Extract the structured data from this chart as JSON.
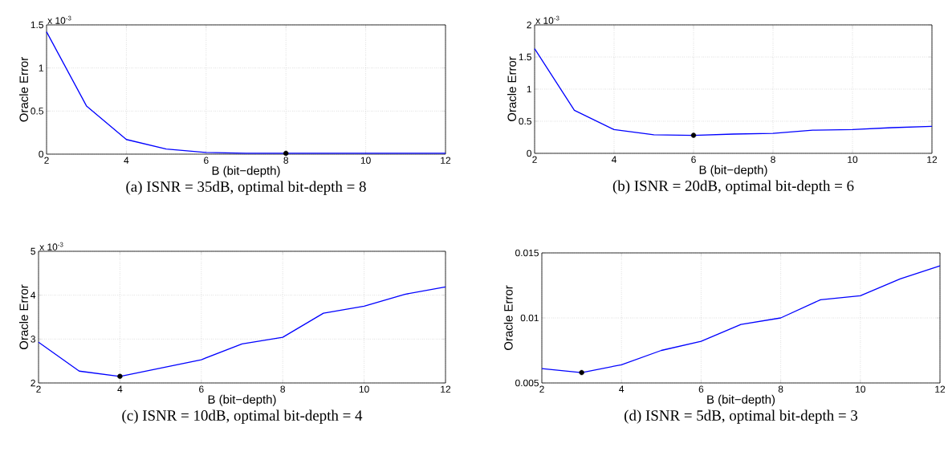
{
  "chart_data": [
    {
      "type": "line",
      "title": "(a) ISNR = 35dB, optimal bit-depth = 8",
      "xlabel": "B (bit−depth)",
      "ylabel": "Oracle Error",
      "annotations": [
        "x 10$^{-3}$"
      ],
      "x": [
        2,
        3,
        4,
        5,
        6,
        7,
        8,
        9,
        10,
        11,
        12
      ],
      "series": [
        {
          "color": "#0000ff",
          "values": [
            1.42,
            0.56,
            0.17,
            0.06,
            0.02,
            0.01,
            0.01,
            0.01,
            0.01,
            0.01,
            0.01
          ]
        },
        {
          "type": "scatter",
          "color": "#000000",
          "x": [
            8
          ],
          "values": [
            0.01
          ]
        }
      ],
      "xlim": [
        2,
        12
      ],
      "xticks": [
        2,
        4,
        6,
        8,
        10,
        12
      ],
      "ylim": [
        0,
        1.5
      ],
      "yticks": [
        0,
        0.5,
        1,
        1.5
      ],
      "grid": true
    },
    {
      "type": "line",
      "title": "(b) ISNR = 20dB, optimal bit-depth = 6",
      "xlabel": "B (bit−depth)",
      "ylabel": "Oracle Error",
      "annotations": [
        "x 10$^{-3}$"
      ],
      "x": [
        2,
        3,
        4,
        5,
        6,
        7,
        8,
        9,
        10,
        11,
        12
      ],
      "series": [
        {
          "color": "#0000ff",
          "values": [
            1.63,
            0.67,
            0.37,
            0.29,
            0.28,
            0.3,
            0.31,
            0.36,
            0.37,
            0.4,
            0.42
          ]
        },
        {
          "type": "scatter",
          "color": "#000000",
          "x": [
            6
          ],
          "values": [
            0.28
          ]
        }
      ],
      "xlim": [
        2,
        12
      ],
      "xticks": [
        2,
        4,
        6,
        8,
        10,
        12
      ],
      "ylim": [
        0,
        2
      ],
      "yticks": [
        0,
        0.5,
        1,
        1.5,
        2
      ],
      "grid": true
    },
    {
      "type": "line",
      "title": "(c) ISNR = 10dB, optimal bit-depth = 4",
      "xlabel": "B (bit−depth)",
      "ylabel": "Oracle Error",
      "annotations": [
        "x 10$^{-3}$"
      ],
      "x": [
        2,
        3,
        4,
        5,
        6,
        7,
        8,
        9,
        10,
        11,
        12
      ],
      "series": [
        {
          "color": "#0000ff",
          "values": [
            2.93,
            2.27,
            2.15,
            2.34,
            2.53,
            2.89,
            3.04,
            3.59,
            3.75,
            4.02,
            4.19
          ]
        },
        {
          "type": "scatter",
          "color": "#000000",
          "x": [
            4
          ],
          "values": [
            2.15
          ]
        }
      ],
      "xlim": [
        2,
        12
      ],
      "xticks": [
        2,
        4,
        6,
        8,
        10,
        12
      ],
      "ylim": [
        2,
        5
      ],
      "yticks": [
        2,
        3,
        4,
        5
      ],
      "grid": true
    },
    {
      "type": "line",
      "title": "(d) ISNR = 5dB, optimal bit-depth = 3",
      "xlabel": "B (bit−depth)",
      "ylabel": "Oracle Error",
      "x": [
        2,
        3,
        4,
        5,
        6,
        7,
        8,
        9,
        10,
        11,
        12
      ],
      "series": [
        {
          "color": "#0000ff",
          "values": [
            0.0061,
            0.0058,
            0.0064,
            0.0075,
            0.0082,
            0.0095,
            0.01,
            0.0114,
            0.0117,
            0.013,
            0.014
          ]
        },
        {
          "type": "scatter",
          "color": "#000000",
          "x": [
            3
          ],
          "values": [
            0.0058
          ]
        }
      ],
      "xlim": [
        2,
        12
      ],
      "xticks": [
        2,
        4,
        6,
        8,
        10,
        12
      ],
      "ylim": [
        0.005,
        0.015
      ],
      "yticks": [
        0.005,
        0.01,
        0.015
      ],
      "grid": true
    }
  ]
}
